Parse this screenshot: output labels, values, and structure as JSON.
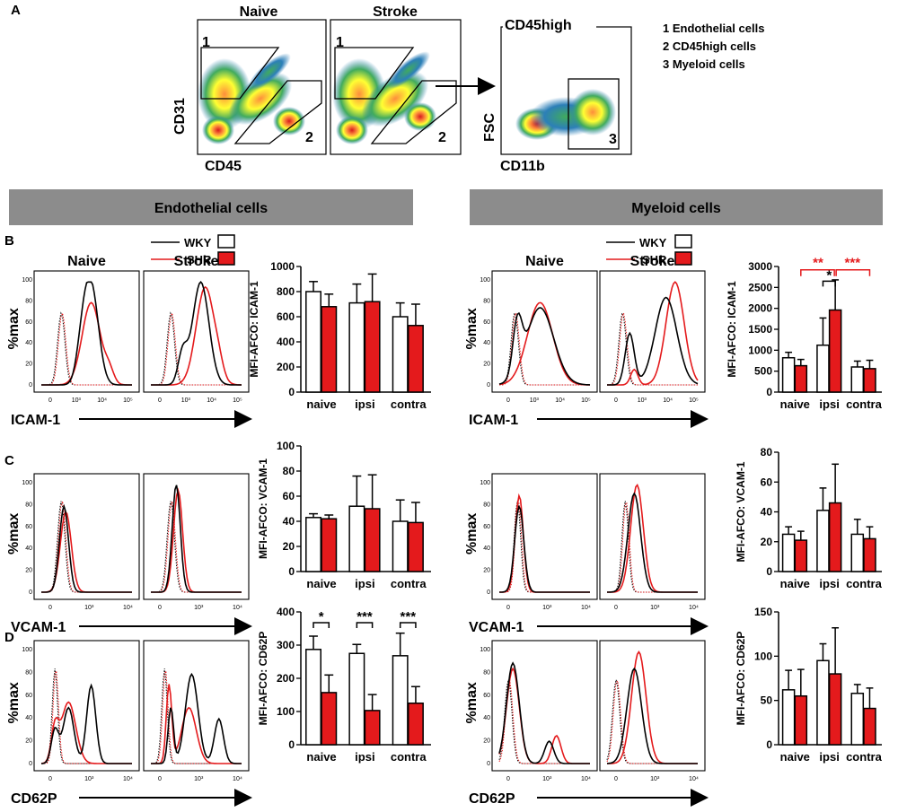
{
  "figure_labels": {
    "A": "A",
    "B": "B",
    "C": "C",
    "D": "D"
  },
  "flow": {
    "plot1_title": "Naive",
    "plot2_title": "Stroke",
    "y_label": "CD31",
    "x_label": "CD45",
    "gate1": "1",
    "gate2": "2",
    "gate3": "3",
    "cd45_title": "CD45high",
    "cd45_ylabel": "FSC",
    "cd45_xlabel": "CD11b",
    "legend": [
      "1 Endothelial cells",
      "2 CD45high cells",
      "3 Myeloid cells"
    ]
  },
  "headers": {
    "endothelial": "Endothelial cells",
    "myeloid": "Myeloid cells"
  },
  "legend": {
    "wky": "WKY",
    "shr": "SHR"
  },
  "colors": {
    "wky": "#000000",
    "shr": "#e41a1c",
    "header_bg": "#8c8c8c"
  },
  "hist": {
    "naive": "Naive",
    "stroke": "Stroke",
    "ylabel": "%max",
    "markers": [
      "ICAM-1",
      "VCAM-1",
      "CD62P"
    ]
  },
  "chart_data": [
    {
      "id": "endo-icam",
      "type": "bar",
      "categories": [
        "naive",
        "ipsi",
        "contra"
      ],
      "series": [
        {
          "name": "WKY",
          "values": [
            800,
            710,
            600
          ],
          "errors": [
            80,
            150,
            110
          ]
        },
        {
          "name": "SHR",
          "values": [
            680,
            720,
            530
          ],
          "errors": [
            100,
            220,
            170
          ]
        }
      ],
      "ylabel": "MFI-AFCO: ICAM-1",
      "ylim": [
        0,
        1000
      ],
      "ticks": [
        0,
        200,
        400,
        600,
        800,
        1000
      ],
      "sig": []
    },
    {
      "id": "myel-icam",
      "type": "bar",
      "categories": [
        "naive",
        "ipsi",
        "contra"
      ],
      "series": [
        {
          "name": "WKY",
          "values": [
            820,
            1120,
            600
          ],
          "errors": [
            130,
            650,
            140
          ]
        },
        {
          "name": "SHR",
          "values": [
            630,
            1960,
            560
          ],
          "errors": [
            150,
            720,
            200
          ]
        }
      ],
      "ylabel": "MFI-AFCO: ICAM-1",
      "ylim": [
        0,
        3000
      ],
      "ticks": [
        0,
        500,
        1000,
        1500,
        2000,
        2500,
        3000
      ],
      "sig": [
        {
          "text": "*",
          "color": "#000000"
        },
        {
          "text": "**",
          "color": "#e41a1c"
        },
        {
          "text": "***",
          "color": "#e41a1c"
        }
      ]
    },
    {
      "id": "endo-vcam",
      "type": "bar",
      "categories": [
        "naive",
        "ipsi",
        "contra"
      ],
      "series": [
        {
          "name": "WKY",
          "values": [
            43,
            52,
            40
          ],
          "errors": [
            3,
            24,
            17
          ]
        },
        {
          "name": "SHR",
          "values": [
            42,
            50,
            39
          ],
          "errors": [
            3,
            27,
            16
          ]
        }
      ],
      "ylabel": "MFI-AFCO: VCAM-1",
      "ylim": [
        0,
        100
      ],
      "ticks": [
        0,
        20,
        40,
        60,
        80,
        100
      ],
      "sig": []
    },
    {
      "id": "myel-vcam",
      "type": "bar",
      "categories": [
        "naive",
        "ipsi",
        "contra"
      ],
      "series": [
        {
          "name": "WKY",
          "values": [
            25,
            41,
            25
          ],
          "errors": [
            5,
            15,
            10
          ]
        },
        {
          "name": "SHR",
          "values": [
            21,
            46,
            22
          ],
          "errors": [
            6,
            26,
            8
          ]
        }
      ],
      "ylabel": "MFI-AFCO: VCAM-1",
      "ylim": [
        0,
        80
      ],
      "ticks": [
        0,
        20,
        40,
        60,
        80
      ],
      "sig": []
    },
    {
      "id": "endo-cd62p",
      "type": "bar",
      "categories": [
        "naive",
        "ipsi",
        "contra"
      ],
      "series": [
        {
          "name": "WKY",
          "values": [
            287,
            275,
            268
          ],
          "errors": [
            40,
            27,
            68
          ]
        },
        {
          "name": "SHR",
          "values": [
            157,
            103,
            125
          ],
          "errors": [
            53,
            48,
            50
          ]
        }
      ],
      "ylabel": "MFI-AFCO: CD62P",
      "ylim": [
        0,
        400
      ],
      "ticks": [
        0,
        100,
        200,
        300,
        400
      ],
      "sig": [
        {
          "text": "*",
          "color": "#000000"
        },
        {
          "text": "***",
          "color": "#000000"
        },
        {
          "text": "***",
          "color": "#000000"
        }
      ]
    },
    {
      "id": "myel-cd62p",
      "type": "bar",
      "categories": [
        "naive",
        "ipsi",
        "contra"
      ],
      "series": [
        {
          "name": "WKY",
          "values": [
            62,
            95,
            58
          ],
          "errors": [
            22,
            19,
            10
          ]
        },
        {
          "name": "SHR",
          "values": [
            55,
            80,
            41
          ],
          "errors": [
            30,
            52,
            23
          ]
        }
      ],
      "ylabel": "MFI-AFCO: CD62P",
      "ylim": [
        0,
        150
      ],
      "ticks": [
        0,
        50,
        100,
        150
      ],
      "sig": []
    }
  ]
}
